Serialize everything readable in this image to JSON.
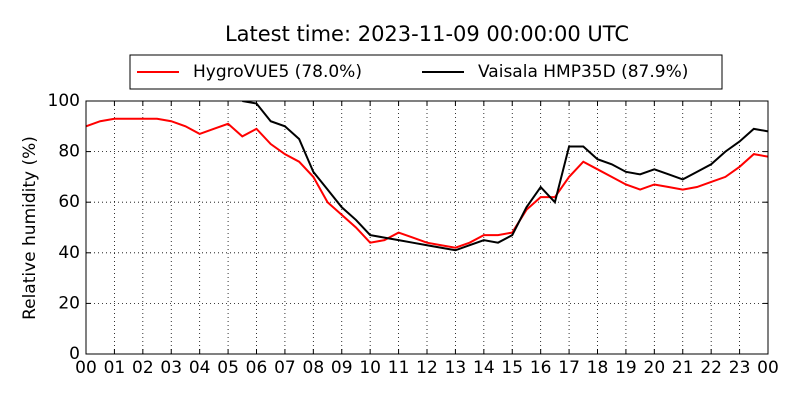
{
  "chart_data": {
    "type": "line",
    "title": "Latest time: 2023-11-09 00:00:00 UTC",
    "y_label": "Relative humidity (%)",
    "x": [
      0,
      0.5,
      1,
      1.5,
      2,
      2.5,
      3,
      3.5,
      4,
      4.5,
      5,
      5.5,
      6,
      6.5,
      7,
      7.5,
      8,
      8.5,
      9,
      9.5,
      10,
      10.5,
      11,
      11.5,
      12,
      12.5,
      13,
      13.5,
      14,
      14.5,
      15,
      15.5,
      16,
      16.5,
      17,
      17.5,
      18,
      18.5,
      19,
      19.5,
      20,
      20.5,
      21,
      21.5,
      22,
      22.5,
      23,
      23.5,
      24
    ],
    "series": [
      {
        "name": "HygroVUE5 (78.0%)",
        "color": "#ff0000",
        "values": [
          90,
          92,
          93,
          93,
          93,
          93,
          92,
          90,
          87,
          89,
          91,
          86,
          89,
          83,
          79,
          76,
          70,
          60,
          55,
          50,
          44,
          45,
          48,
          46,
          44,
          43,
          42,
          44,
          47,
          47,
          48,
          57,
          62,
          62,
          70,
          76,
          73,
          70,
          67,
          65,
          67,
          66,
          65,
          66,
          68,
          70,
          74,
          79,
          78
        ]
      },
      {
        "name": "Vaisala HMP35D (87.9%)",
        "color": "#000000",
        "values": [
          null,
          null,
          null,
          null,
          null,
          null,
          null,
          null,
          null,
          null,
          null,
          100,
          99,
          92,
          90,
          85,
          72,
          65,
          58,
          53,
          47,
          46,
          45,
          44,
          43,
          42,
          41,
          43,
          45,
          44,
          47,
          58,
          66,
          60,
          82,
          82,
          77,
          75,
          72,
          71,
          73,
          71,
          69,
          72,
          75,
          80,
          84,
          89,
          88
        ]
      }
    ],
    "xlim": [
      0,
      24
    ],
    "xticks": [
      {
        "value": 0,
        "label": "00"
      },
      {
        "value": 1,
        "label": "01"
      },
      {
        "value": 2,
        "label": "02"
      },
      {
        "value": 3,
        "label": "03"
      },
      {
        "value": 4,
        "label": "04"
      },
      {
        "value": 5,
        "label": "05"
      },
      {
        "value": 6,
        "label": "06"
      },
      {
        "value": 7,
        "label": "07"
      },
      {
        "value": 8,
        "label": "08"
      },
      {
        "value": 9,
        "label": "09"
      },
      {
        "value": 10,
        "label": "10"
      },
      {
        "value": 11,
        "label": "11"
      },
      {
        "value": 12,
        "label": "12"
      },
      {
        "value": 13,
        "label": "13"
      },
      {
        "value": 14,
        "label": "14"
      },
      {
        "value": 15,
        "label": "15"
      },
      {
        "value": 16,
        "label": "16"
      },
      {
        "value": 17,
        "label": "17"
      },
      {
        "value": 18,
        "label": "18"
      },
      {
        "value": 19,
        "label": "19"
      },
      {
        "value": 20,
        "label": "20"
      },
      {
        "value": 21,
        "label": "21"
      },
      {
        "value": 22,
        "label": "22"
      },
      {
        "value": 23,
        "label": "23"
      },
      {
        "value": 24,
        "label": "00"
      }
    ],
    "ylim": [
      0,
      100
    ],
    "yticks": [
      0,
      20,
      40,
      60,
      80,
      100
    ],
    "grid": true
  }
}
